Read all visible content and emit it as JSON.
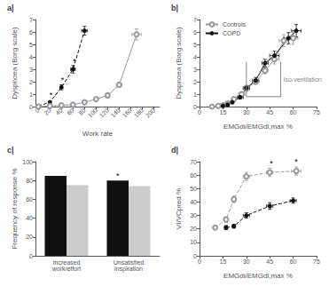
{
  "chart_data": [
    {
      "type": "line",
      "title": "a|",
      "xlabel": "Work rate",
      "ylabel": "Dyspnoea (Borg scale)",
      "xlim": [
        -5,
        210
      ],
      "ylim": [
        0,
        7
      ],
      "xticks": [
        0,
        20,
        40,
        60,
        80,
        100,
        120,
        140,
        160,
        180,
        200
      ],
      "yticks": [
        0,
        1,
        2,
        3,
        4,
        5,
        6,
        7
      ],
      "grid": false,
      "series": [
        {
          "color": "#111111",
          "marker": "filled_circle",
          "line_style": "dashed",
          "x": [
            0,
            20,
            40,
            60,
            80
          ],
          "values": [
            0.05,
            0.35,
            1.55,
            3.0,
            6.1
          ],
          "xerr": [
            0,
            0,
            0,
            4,
            5
          ],
          "yerr": [
            0.05,
            0.1,
            0.2,
            0.3,
            0.35
          ]
        },
        {
          "color": "#999999",
          "marker": "open_circle",
          "line_style": "solid",
          "x": [
            0,
            20,
            40,
            60,
            80,
            100,
            120,
            140,
            170
          ],
          "values": [
            0.0,
            0.05,
            0.1,
            0.15,
            0.35,
            0.6,
            0.9,
            1.75,
            5.8
          ],
          "xerr": [
            0,
            0,
            0,
            0,
            0,
            0,
            0,
            5,
            8
          ],
          "yerr": [
            0.0,
            0.04,
            0.04,
            0.04,
            0.08,
            0.12,
            0.18,
            0.22,
            0.45
          ]
        }
      ],
      "annotations": [
        {
          "text": "*",
          "x": 22,
          "y": 0.6,
          "color": "black"
        },
        {
          "text": "*",
          "x": 42,
          "y": 1.85,
          "color": "black"
        },
        {
          "text": "*",
          "x": 62,
          "y": 3.35,
          "color": "black"
        }
      ]
    },
    {
      "type": "line",
      "title": "b|",
      "xlabel": "EMGdi/EMGdi,max %",
      "ylabel": "Dyspnoea (Borg scale)",
      "xlim": [
        0,
        75
      ],
      "ylim": [
        0,
        7
      ],
      "xticks": [
        0,
        15,
        30,
        45,
        60,
        75
      ],
      "yticks": [
        0,
        1,
        2,
        3,
        4,
        5,
        6,
        7
      ],
      "grid": false,
      "legend": "upper left",
      "series": [
        {
          "name": "Controls",
          "color": "#999999",
          "marker": "open_circle",
          "line_style": "solid",
          "x": [
            8,
            12,
            15,
            18,
            22,
            27,
            30,
            36,
            42,
            48,
            54,
            60
          ],
          "values": [
            0.0,
            0.05,
            0.1,
            0.25,
            0.6,
            1.0,
            1.45,
            2.0,
            2.9,
            3.8,
            5.3,
            5.5
          ],
          "xerr": [
            1,
            1,
            1,
            1,
            1,
            2,
            2,
            2,
            2,
            3,
            3,
            3
          ],
          "yerr": [
            0.0,
            0.04,
            0.05,
            0.08,
            0.1,
            0.15,
            0.18,
            0.2,
            0.28,
            0.38,
            0.48,
            0.5
          ]
        },
        {
          "name": "COPD",
          "color": "#111111",
          "marker": "filled_circle",
          "line_style": "solid",
          "x": [
            15,
            18,
            21,
            26,
            30,
            36,
            42,
            48,
            57,
            62
          ],
          "values": [
            0.05,
            0.15,
            0.35,
            0.75,
            1.5,
            2.1,
            3.5,
            4.1,
            5.5,
            6.1
          ],
          "xerr": [
            1,
            1,
            1,
            2,
            2,
            2,
            2,
            3,
            3,
            3
          ],
          "yerr": [
            0.05,
            0.1,
            0.12,
            0.15,
            0.2,
            0.25,
            0.3,
            0.35,
            0.45,
            0.5
          ]
        }
      ],
      "annotations": [
        {
          "text": "Iso-ventilation",
          "x1": 30,
          "y1": 0.8,
          "x2": 52,
          "y2": 3.6,
          "color": "#888888"
        }
      ]
    },
    {
      "type": "bar",
      "title": "c|",
      "ylabel": "Frequency of response %",
      "categories": [
        "Increased\nwork/effort",
        "Unsatisfied\ninspiration"
      ],
      "ylim": [
        0,
        100
      ],
      "yticks": [
        0,
        20,
        40,
        60,
        80,
        100
      ],
      "grid": false,
      "series": [
        {
          "color": "#111111",
          "values": [
            85,
            80
          ]
        },
        {
          "color": "#cccccc",
          "values": [
            75,
            74
          ]
        }
      ],
      "annotations": [
        {
          "text": "*",
          "series": 0,
          "index": 1,
          "color": "black"
        }
      ]
    },
    {
      "type": "line",
      "title": "d|",
      "xlabel": "EMGdi/EMGdi,max %",
      "ylabel": "Vt/VCpred %",
      "xlim": [
        0,
        75
      ],
      "ylim": [
        0,
        70
      ],
      "xticks": [
        0,
        15,
        30,
        45,
        60,
        75
      ],
      "yticks": [
        0,
        10,
        20,
        30,
        40,
        50,
        60,
        70
      ],
      "grid": false,
      "series": [
        {
          "color": "#999999",
          "marker": "open_circle",
          "line_style": "dashed",
          "x": [
            10,
            17,
            22,
            30,
            45,
            62
          ],
          "values": [
            21,
            27,
            42,
            59,
            62,
            63
          ],
          "xerr": [
            1,
            1,
            1,
            2,
            2,
            3
          ],
          "yerr": [
            1.5,
            2,
            2.5,
            3,
            3,
            3
          ]
        },
        {
          "color": "#111111",
          "marker": "filled_circle",
          "line_style": "dashed",
          "x": [
            17,
            22,
            30,
            45,
            60
          ],
          "values": [
            21,
            22,
            30,
            37,
            41
          ],
          "xerr": [
            1,
            1,
            2,
            2,
            2
          ],
          "yerr": [
            1.5,
            1.5,
            2,
            2.5,
            2
          ]
        }
      ],
      "annotations": [
        {
          "text": "*",
          "x": 46,
          "y": 66,
          "color": "black"
        },
        {
          "text": "*",
          "x": 62,
          "y": 67,
          "color": "black"
        }
      ]
    }
  ]
}
